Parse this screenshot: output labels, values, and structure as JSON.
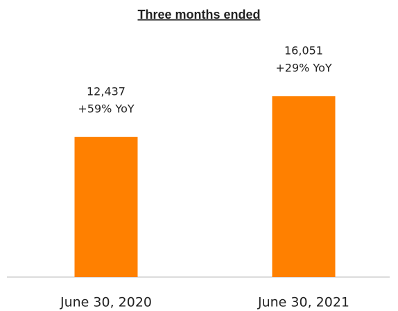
{
  "chart_data": {
    "type": "bar",
    "title": "Three months ended",
    "categories": [
      "June 30, 2020",
      "June 30, 2021"
    ],
    "values": [
      12437,
      16051
    ],
    "value_labels": [
      "12,437",
      "16,051"
    ],
    "growth_labels": [
      "+59% YoY",
      "+29% YoY"
    ],
    "color": "#ff8000"
  }
}
